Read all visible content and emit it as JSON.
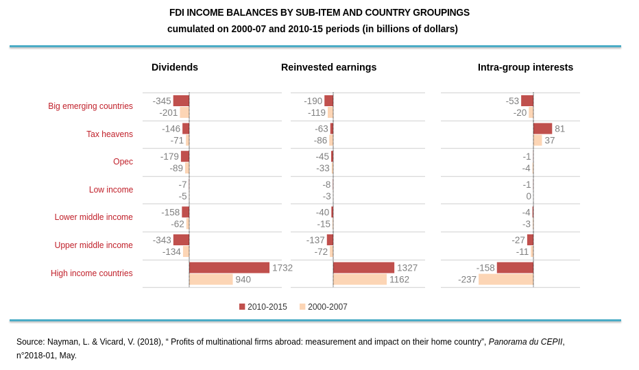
{
  "chart_data": {
    "type": "bar",
    "orientation": "horizontal",
    "title": "FDI INCOME BALANCES BY SUB-ITEM AND COUNTRY GROUPINGS",
    "subtitle": "cumulated  on 2000-07 and 2010-15 periods (in billions of dollars)",
    "categories": [
      "Big emerging countries",
      "Tax heavens",
      "Opec",
      "Low income",
      "Lower middle income",
      "Upper middle income",
      "High income countries"
    ],
    "legend": {
      "position": "bottom",
      "entries": [
        {
          "name": "2010-2015",
          "color": "#C0504D"
        },
        {
          "name": "2000-2007",
          "color": "#FCD5B5"
        }
      ]
    },
    "panels": [
      {
        "title": "Dividends",
        "xlim": [
          -1000,
          2000
        ],
        "series": [
          {
            "name": "2010-2015",
            "values": [
              -345,
              -146,
              -179,
              -7,
              -158,
              -343,
              1732
            ]
          },
          {
            "name": "2000-2007",
            "values": [
              -201,
              -71,
              -89,
              -5,
              -62,
              -134,
              940
            ]
          }
        ]
      },
      {
        "title": "Reinvested earnings",
        "xlim": [
          -925,
          2000
        ],
        "series": [
          {
            "name": "2010-2015",
            "values": [
              -190,
              -63,
              -45,
              -8,
              -40,
              -137,
              1327
            ]
          },
          {
            "name": "2000-2007",
            "values": [
              -119,
              -86,
              -33,
              -3,
              -15,
              -72,
              1162
            ]
          }
        ]
      },
      {
        "title": "Intra-group interests",
        "xlim": [
          -400,
          200
        ],
        "series": [
          {
            "name": "2010-2015",
            "values": [
              -53,
              81,
              -1,
              -1,
              -4,
              -27,
              -158
            ]
          },
          {
            "name": "2000-2007",
            "values": [
              -20,
              37,
              -4,
              0,
              -3,
              -11,
              -237
            ]
          }
        ]
      }
    ],
    "grid": "horizontal separators",
    "colors": {
      "label": "#C0202A",
      "value": "#7F7F7F",
      "rule": "#4BACC6",
      "grid": "#D9D9D9"
    }
  },
  "source": {
    "prefix": "Source: Nayman, L. & Vicard, V. (2018), “ Profits of multinational firms abroad: measurement and impact on their home country”, ",
    "journal": "Panorama du CEPII",
    "suffix": ", n°2018-01, May."
  }
}
